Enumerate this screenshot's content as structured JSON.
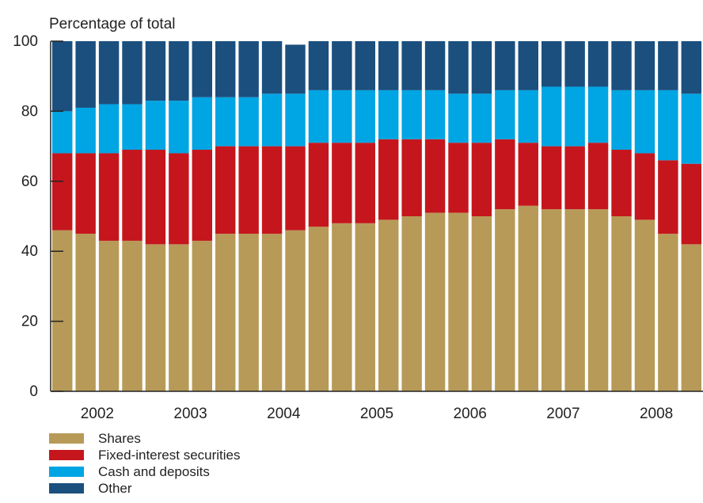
{
  "chart_data": {
    "type": "bar",
    "stacked": true,
    "ylabel": "Percentage of total",
    "ylim": [
      0,
      100
    ],
    "yticks": [
      0,
      20,
      40,
      60,
      80,
      100
    ],
    "grid": false,
    "legend_position": "bottom-left",
    "year_labels": [
      "2002",
      "2003",
      "2004",
      "2005",
      "2006",
      "2007",
      "2008"
    ],
    "quarters_per_year": 4,
    "series": [
      {
        "name": "Shares",
        "color": "#b79a58",
        "values": [
          46,
          45,
          43,
          43,
          42,
          42,
          43,
          45,
          45,
          45,
          46,
          47,
          48,
          48,
          49,
          50,
          51,
          51,
          50,
          52,
          53,
          52,
          52,
          52,
          50,
          49,
          45,
          42
        ]
      },
      {
        "name": "Fixed-interest securities",
        "color": "#c5161d",
        "values": [
          22,
          23,
          25,
          26,
          27,
          26,
          26,
          25,
          25,
          25,
          24,
          24,
          23,
          23,
          23,
          22,
          21,
          20,
          21,
          20,
          18,
          18,
          18,
          19,
          19,
          19,
          21,
          23
        ]
      },
      {
        "name": "Cash and deposits",
        "color": "#00a5e3",
        "values": [
          12,
          13,
          14,
          13,
          14,
          15,
          15,
          14,
          14,
          15,
          15,
          15,
          15,
          15,
          14,
          14,
          14,
          14,
          14,
          14,
          15,
          17,
          17,
          16,
          17,
          18,
          20,
          20
        ]
      },
      {
        "name": "Other",
        "color": "#1b4f7e",
        "values": [
          20,
          19,
          18,
          18,
          17,
          17,
          16,
          16,
          16,
          15,
          14,
          14,
          14,
          14,
          14,
          14,
          14,
          15,
          15,
          14,
          14,
          13,
          13,
          13,
          14,
          14,
          14,
          15
        ]
      }
    ]
  }
}
